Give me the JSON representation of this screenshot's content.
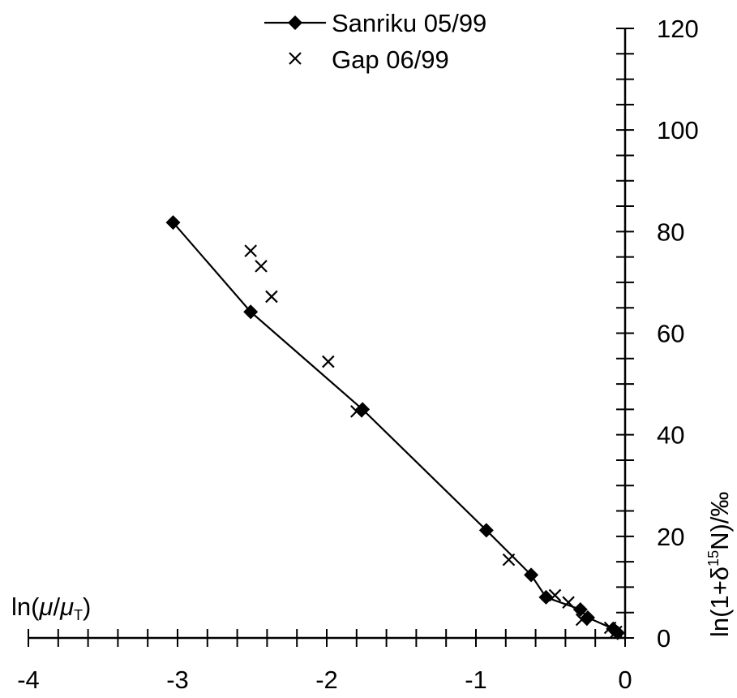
{
  "chart_data": {
    "type": "scatter",
    "title": "",
    "xlabel": "ln(μ/μT)",
    "xlabel_main": "ln(",
    "xlabel_mu": "μ",
    "xlabel_slash": "/",
    "xlabel_mu2": "μ",
    "xlabel_sub": "T",
    "xlabel_close": ")",
    "ylabel": "ln(1+δ15N)/‰",
    "ylabel_pre": "ln(1+δ",
    "ylabel_sup": "15",
    "ylabel_post": "N)/‰",
    "xlim": [
      -4,
      0
    ],
    "ylim": [
      0,
      120
    ],
    "xticks": [
      -4,
      -3,
      -2,
      -1,
      0
    ],
    "xtick_labels": [
      "-4",
      "-3",
      "-2",
      "-1",
      "0"
    ],
    "yticks": [
      0,
      20,
      40,
      60,
      80,
      100,
      120
    ],
    "ytick_labels": [
      "0",
      "20",
      "40",
      "60",
      "80",
      "100",
      "120"
    ],
    "grid": false,
    "legend_position": "top",
    "series": [
      {
        "name": "Sanriku 05/99",
        "marker": "diamond",
        "line": true,
        "color": "#000000",
        "x": [
          -3.03,
          -2.51,
          -1.76,
          -0.93,
          -0.63,
          -0.53,
          -0.3,
          -0.25,
          -0.08,
          -0.05
        ],
        "y": [
          81.8,
          64.2,
          45.0,
          21.2,
          12.4,
          8.0,
          5.6,
          4.0,
          1.8,
          1.0
        ]
      },
      {
        "name": "Gap 06/99",
        "marker": "x",
        "line": false,
        "color": "#000000",
        "x": [
          -2.51,
          -2.44,
          -2.37,
          -1.99,
          -1.8,
          -0.78,
          -0.47,
          -0.38,
          -0.29,
          -0.1,
          -0.06
        ],
        "y": [
          76.2,
          73.2,
          67.2,
          54.4,
          44.6,
          15.4,
          8.4,
          7.0,
          3.6,
          2.0,
          1.2
        ]
      }
    ]
  }
}
